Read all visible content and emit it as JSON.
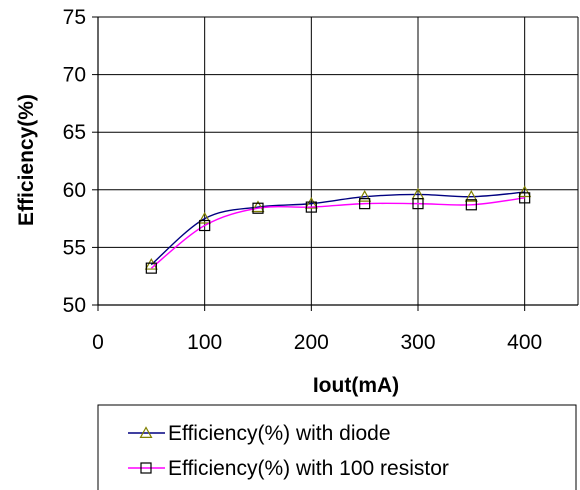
{
  "chart_data": {
    "type": "line",
    "xlabel": "Iout(mA)",
    "ylabel": "Efficiency(%)",
    "xlim": [
      0,
      450
    ],
    "ylim": [
      50,
      75
    ],
    "x_ticks": [
      "0",
      "100",
      "200",
      "300",
      "400"
    ],
    "y_ticks": [
      "50",
      "55",
      "60",
      "65",
      "70",
      "75"
    ],
    "grid": true,
    "legend_position": "bottom",
    "x": [
      50,
      100,
      150,
      200,
      250,
      300,
      350,
      400
    ],
    "series": [
      {
        "name": "Efficiency(%) with diode",
        "marker": "triangle",
        "line_color": "#000080",
        "marker_color": "#808000",
        "values": [
          53.5,
          57.5,
          58.5,
          58.8,
          59.4,
          59.6,
          59.4,
          59.8
        ]
      },
      {
        "name": "Efficiency(%) with 100 resistor",
        "marker": "square",
        "line_color": "#ff00ff",
        "marker_color": "#000000",
        "values": [
          53.2,
          56.9,
          58.4,
          58.5,
          58.8,
          58.8,
          58.7,
          59.3
        ]
      }
    ]
  }
}
